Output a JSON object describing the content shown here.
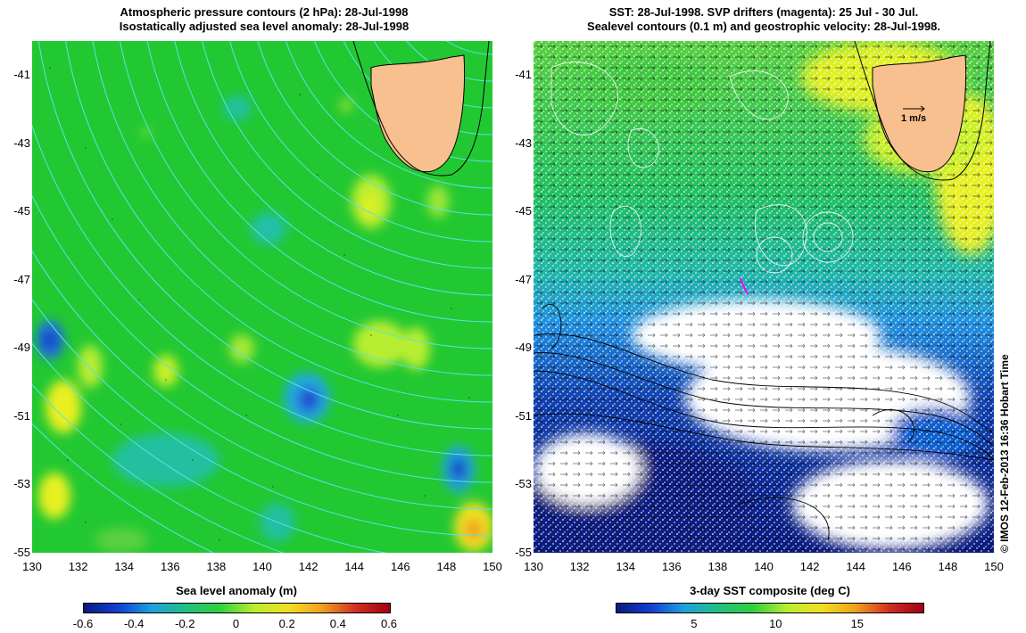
{
  "left_panel": {
    "title_line1": "Atmospheric pressure contours (2 hPa): 28-Jul-1998",
    "title_line2": "Isostatically adjusted sea level anomaly: 28-Jul-1998",
    "x_ticks": [
      "130",
      "132",
      "134",
      "136",
      "138",
      "140",
      "142",
      "144",
      "146",
      "148",
      "150"
    ],
    "y_ticks": [
      "-41",
      "-43",
      "-45",
      "-47",
      "-49",
      "-51",
      "-53",
      "-55"
    ],
    "colorbar_title": "Sea level anomaly (m)",
    "colorbar_ticks": [
      "-0.6",
      "-0.4",
      "-0.2",
      "0",
      "0.2",
      "0.4",
      "0.6"
    ]
  },
  "right_panel": {
    "title_line1": "SST: 28-Jul-1998. SVP drifters (magenta): 25 Jul - 30 Jul.",
    "title_line2": "Sealevel contours (0.1 m) and geostrophic velocity: 28-Jul-1998.",
    "x_ticks": [
      "130",
      "132",
      "134",
      "136",
      "138",
      "140",
      "142",
      "144",
      "146",
      "148",
      "150"
    ],
    "y_ticks": [
      "-41",
      "-43",
      "-45",
      "-47",
      "-49",
      "-51",
      "-53",
      "-55"
    ],
    "velocity_scale_label": "1 m/s",
    "colorbar_title": "3-day SST composite (deg C)",
    "colorbar_ticks": [
      "5",
      "10",
      "15"
    ]
  },
  "credit": "© IMOS 12-Feb-2013 16:36 Hobart Time",
  "colors": {
    "land": "#f7c08e",
    "sla_background": "#22c832",
    "pressure_contour": "#5ce1e6",
    "drifter": "#ff00ff",
    "sst_missing": "#ffffff",
    "sst_cold": "#0a1a80"
  },
  "map_extent": {
    "lon": [
      130,
      150
    ],
    "lat": [
      -55,
      -40
    ]
  }
}
